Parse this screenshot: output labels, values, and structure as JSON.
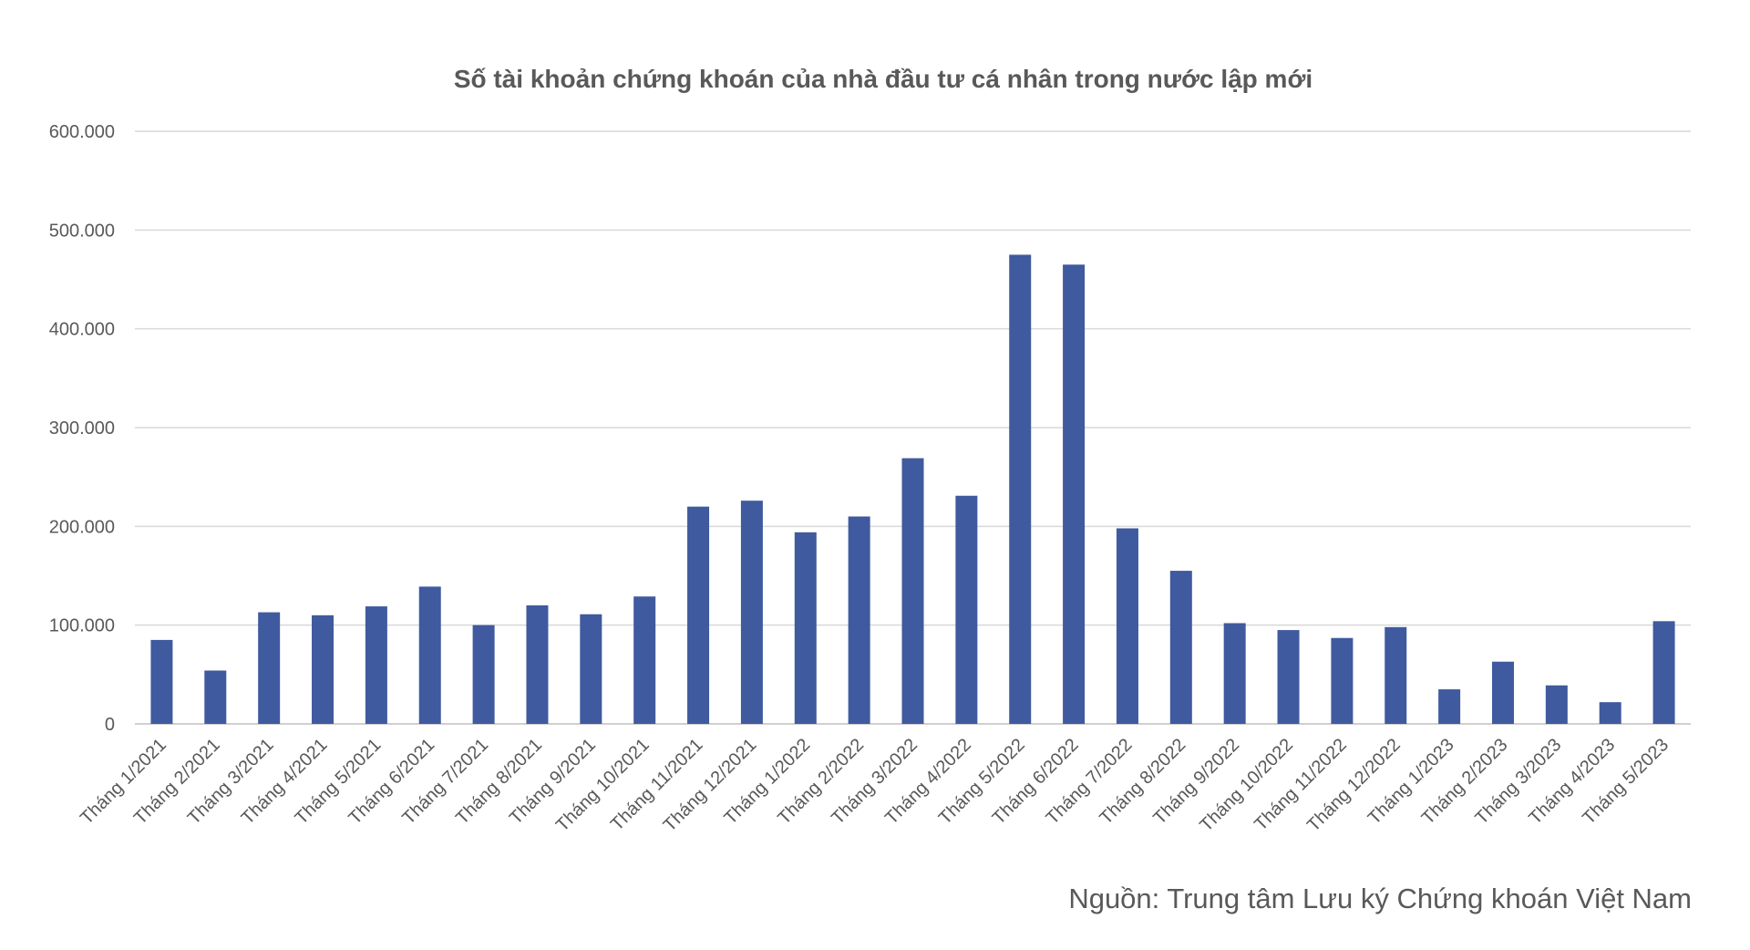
{
  "chart_data": {
    "type": "bar",
    "title": "Số tài khoản chứng khoán của nhà đầu tư cá nhân trong nước lập mới",
    "xlabel": "",
    "ylabel": "",
    "ylim": [
      0,
      600000
    ],
    "yticks": [
      0,
      100000,
      200000,
      300000,
      400000,
      500000,
      600000
    ],
    "ytick_labels": [
      "0",
      "100.000",
      "200.000",
      "300.000",
      "400.000",
      "500.000",
      "600.000"
    ],
    "grid": true,
    "bar_color": "#3f5a9e",
    "categories": [
      "Tháng 1/2021",
      "Tháng 2/2021",
      "Tháng 3/2021",
      "Tháng 4/2021",
      "Tháng 5/2021",
      "Tháng 6/2021",
      "Tháng 7/2021",
      "Tháng 8/2021",
      "Tháng 9/2021",
      "Tháng 10/2021",
      "Tháng 11/2021",
      "Tháng 12/2021",
      "Tháng 1/2022",
      "Tháng 2/2022",
      "Tháng 3/2022",
      "Tháng 4/2022",
      "Tháng 5/2022",
      "Tháng 6/2022",
      "Tháng 7/2022",
      "Tháng 8/2022",
      "Tháng 9/2022",
      "Tháng 10/2022",
      "Tháng 11/2022",
      "Tháng 12/2022",
      "Tháng 1/2023",
      "Tháng 2/2023",
      "Tháng 3/2023",
      "Tháng 4/2023",
      "Tháng 5/2023"
    ],
    "values": [
      85000,
      54000,
      113000,
      110000,
      119000,
      139000,
      100000,
      120000,
      111000,
      129000,
      220000,
      226000,
      194000,
      210000,
      269000,
      231000,
      475000,
      465000,
      198000,
      155000,
      102000,
      95000,
      87000,
      98000,
      35000,
      63000,
      39000,
      22000,
      104000
    ]
  },
  "source": "Nguồn: Trung tâm Lưu ký Chứng khoán Việt Nam"
}
